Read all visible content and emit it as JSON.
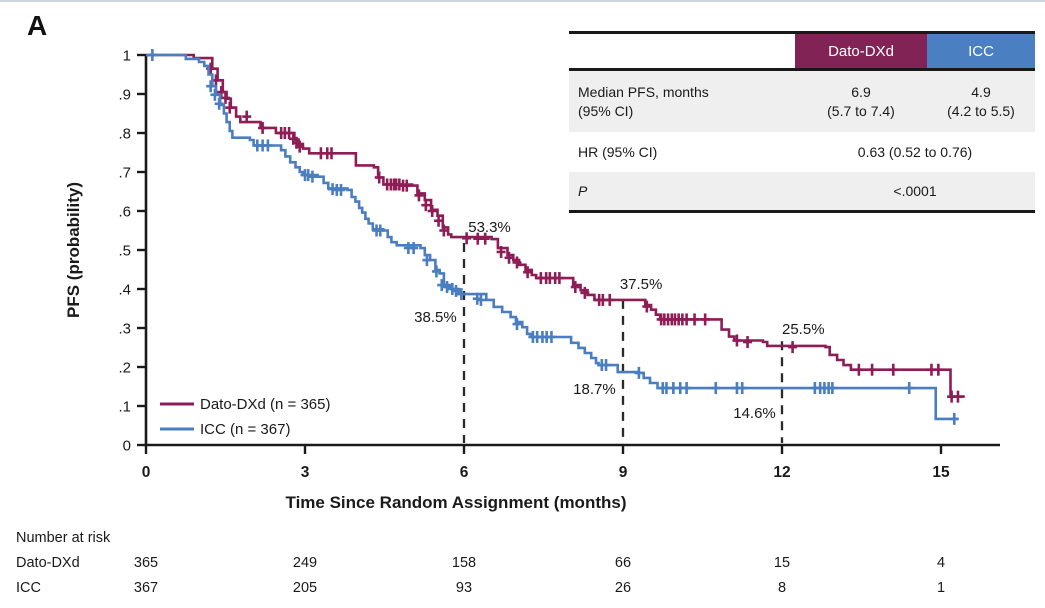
{
  "panel_label": "A",
  "summary_table": {
    "columns": [
      "Dato-DXd",
      "ICC"
    ],
    "rows": [
      {
        "label_line1": "Median PFS, months",
        "label_line2": "(95% CI)",
        "dato_line1": "6.9",
        "dato_line2": "(5.7 to 7.4)",
        "icc_line1": "4.9",
        "icc_line2": "(4.2 to 5.5)"
      },
      {
        "label": "HR (95% CI)",
        "value": "0.63 (0.52 to 0.76)"
      },
      {
        "label": "P",
        "value": "<.0001"
      }
    ],
    "colors": {
      "dato_header": "#822355",
      "icc_header": "#4A80C2",
      "row_gray": "#efefef"
    }
  },
  "chart_data": {
    "type": "line",
    "subtype": "kaplan-meier-step",
    "title": "",
    "xlabel": "Time Since Random Assignment (months)",
    "ylabel": "PFS (probability)",
    "xlim": [
      0,
      16.1
    ],
    "ylim": [
      0,
      1
    ],
    "xticks": [
      0,
      3,
      6,
      9,
      12,
      15
    ],
    "yticks": [
      [
        0,
        "0"
      ],
      [
        0.1,
        ".1"
      ],
      [
        0.2,
        ".2"
      ],
      [
        0.3,
        ".3"
      ],
      [
        0.4,
        ".4"
      ],
      [
        0.5,
        ".5"
      ],
      [
        0.6,
        ".6"
      ],
      [
        0.7,
        ".7"
      ],
      [
        0.8,
        ".8"
      ],
      [
        0.9,
        ".9"
      ],
      [
        1,
        "1"
      ]
    ],
    "grid": false,
    "legend_position": "lower-left",
    "series": [
      {
        "name": "Dato-DXd (n = 365)",
        "color": "#8E1D56",
        "steps": [
          [
            0,
            1
          ],
          [
            0.85,
            1
          ],
          [
            0.9,
            0.992
          ],
          [
            1.15,
            0.992
          ],
          [
            1.25,
            0.965
          ],
          [
            1.35,
            0.935
          ],
          [
            1.45,
            0.905
          ],
          [
            1.52,
            0.888
          ],
          [
            1.6,
            0.865
          ],
          [
            1.7,
            0.842
          ],
          [
            1.78,
            0.828
          ],
          [
            2.1,
            0.828
          ],
          [
            2.16,
            0.813
          ],
          [
            2.35,
            0.813
          ],
          [
            2.45,
            0.8
          ],
          [
            2.72,
            0.8
          ],
          [
            2.8,
            0.783
          ],
          [
            2.88,
            0.772
          ],
          [
            2.96,
            0.76
          ],
          [
            3.08,
            0.748
          ],
          [
            3.88,
            0.748
          ],
          [
            3.96,
            0.717
          ],
          [
            4.3,
            0.712
          ],
          [
            4.38,
            0.686
          ],
          [
            4.48,
            0.668
          ],
          [
            5.02,
            0.665
          ],
          [
            5.12,
            0.645
          ],
          [
            5.26,
            0.628
          ],
          [
            5.38,
            0.603
          ],
          [
            5.5,
            0.588
          ],
          [
            5.6,
            0.558
          ],
          [
            5.7,
            0.54
          ],
          [
            5.76,
            0.533
          ],
          [
            6.52,
            0.528
          ],
          [
            6.64,
            0.505
          ],
          [
            6.82,
            0.487
          ],
          [
            6.93,
            0.474
          ],
          [
            7.04,
            0.462
          ],
          [
            7.16,
            0.449
          ],
          [
            7.28,
            0.436
          ],
          [
            7.36,
            0.428
          ],
          [
            7.92,
            0.428
          ],
          [
            8.06,
            0.41
          ],
          [
            8.2,
            0.397
          ],
          [
            8.33,
            0.385
          ],
          [
            8.46,
            0.372
          ],
          [
            9.3,
            0.372
          ],
          [
            9.42,
            0.359
          ],
          [
            9.53,
            0.347
          ],
          [
            9.62,
            0.334
          ],
          [
            9.7,
            0.322
          ],
          [
            10.72,
            0.322
          ],
          [
            10.86,
            0.296
          ],
          [
            11.0,
            0.278
          ],
          [
            11.1,
            0.268
          ],
          [
            11.64,
            0.264
          ],
          [
            11.72,
            0.254
          ],
          [
            12.82,
            0.251
          ],
          [
            12.9,
            0.231
          ],
          [
            13.04,
            0.218
          ],
          [
            13.16,
            0.205
          ],
          [
            13.3,
            0.193
          ],
          [
            15.13,
            0.193
          ],
          [
            15.18,
            0.124
          ],
          [
            15.45,
            0.124
          ]
        ],
        "censors": [
          [
            1.22,
            0.965
          ],
          [
            1.32,
            0.935
          ],
          [
            1.42,
            0.905
          ],
          [
            1.5,
            0.89
          ],
          [
            1.58,
            0.865
          ],
          [
            1.9,
            0.842
          ],
          [
            2.2,
            0.813
          ],
          [
            2.55,
            0.8
          ],
          [
            2.62,
            0.8
          ],
          [
            2.7,
            0.8
          ],
          [
            2.78,
            0.785
          ],
          [
            2.84,
            0.775
          ],
          [
            2.9,
            0.765
          ],
          [
            3.3,
            0.748
          ],
          [
            3.42,
            0.748
          ],
          [
            3.5,
            0.748
          ],
          [
            4.4,
            0.686
          ],
          [
            4.55,
            0.668
          ],
          [
            4.62,
            0.668
          ],
          [
            4.68,
            0.668
          ],
          [
            4.72,
            0.668
          ],
          [
            4.78,
            0.668
          ],
          [
            4.85,
            0.665
          ],
          [
            4.92,
            0.665
          ],
          [
            5.15,
            0.64
          ],
          [
            5.28,
            0.615
          ],
          [
            5.4,
            0.6
          ],
          [
            5.52,
            0.575
          ],
          [
            5.62,
            0.55
          ],
          [
            6.05,
            0.53
          ],
          [
            6.26,
            0.529
          ],
          [
            6.4,
            0.529
          ],
          [
            6.7,
            0.495
          ],
          [
            6.85,
            0.48
          ],
          [
            7.0,
            0.468
          ],
          [
            7.2,
            0.443
          ],
          [
            7.45,
            0.428
          ],
          [
            7.55,
            0.428
          ],
          [
            7.62,
            0.428
          ],
          [
            7.72,
            0.428
          ],
          [
            7.8,
            0.428
          ],
          [
            8.1,
            0.405
          ],
          [
            8.28,
            0.39
          ],
          [
            8.55,
            0.372
          ],
          [
            8.62,
            0.372
          ],
          [
            8.75,
            0.372
          ],
          [
            9.45,
            0.355
          ],
          [
            9.72,
            0.322
          ],
          [
            9.78,
            0.322
          ],
          [
            9.85,
            0.322
          ],
          [
            9.92,
            0.322
          ],
          [
            9.98,
            0.322
          ],
          [
            10.05,
            0.322
          ],
          [
            10.12,
            0.322
          ],
          [
            10.2,
            0.322
          ],
          [
            10.35,
            0.322
          ],
          [
            10.55,
            0.322
          ],
          [
            11.15,
            0.268
          ],
          [
            11.35,
            0.264
          ],
          [
            12.2,
            0.251
          ],
          [
            13.45,
            0.193
          ],
          [
            13.7,
            0.193
          ],
          [
            14.1,
            0.193
          ],
          [
            14.82,
            0.193
          ],
          [
            14.95,
            0.193
          ],
          [
            15.2,
            0.124
          ],
          [
            15.32,
            0.124
          ]
        ]
      },
      {
        "name": "ICC (n = 367)",
        "color": "#4A7EC0",
        "steps": [
          [
            0,
            1
          ],
          [
            0.65,
            1
          ],
          [
            0.75,
            0.99
          ],
          [
            1.0,
            0.982
          ],
          [
            1.1,
            0.972
          ],
          [
            1.18,
            0.95
          ],
          [
            1.25,
            0.92
          ],
          [
            1.32,
            0.898
          ],
          [
            1.4,
            0.872
          ],
          [
            1.47,
            0.85
          ],
          [
            1.52,
            0.828
          ],
          [
            1.58,
            0.805
          ],
          [
            1.63,
            0.788
          ],
          [
            1.96,
            0.782
          ],
          [
            2.03,
            0.768
          ],
          [
            2.55,
            0.756
          ],
          [
            2.63,
            0.74
          ],
          [
            2.72,
            0.725
          ],
          [
            2.82,
            0.712
          ],
          [
            2.9,
            0.7
          ],
          [
            2.96,
            0.692
          ],
          [
            3.24,
            0.688
          ],
          [
            3.35,
            0.672
          ],
          [
            3.44,
            0.658
          ],
          [
            3.8,
            0.654
          ],
          [
            3.88,
            0.636
          ],
          [
            3.95,
            0.624
          ],
          [
            4.02,
            0.608
          ],
          [
            4.08,
            0.596
          ],
          [
            4.14,
            0.58
          ],
          [
            4.2,
            0.568
          ],
          [
            4.28,
            0.553
          ],
          [
            4.48,
            0.55
          ],
          [
            4.56,
            0.533
          ],
          [
            4.63,
            0.52
          ],
          [
            4.73,
            0.512
          ],
          [
            5.18,
            0.505
          ],
          [
            5.26,
            0.487
          ],
          [
            5.36,
            0.474
          ],
          [
            5.46,
            0.449
          ],
          [
            5.54,
            0.44
          ],
          [
            5.62,
            0.41
          ],
          [
            5.76,
            0.4
          ],
          [
            5.9,
            0.387
          ],
          [
            6.42,
            0.372
          ],
          [
            6.56,
            0.354
          ],
          [
            6.72,
            0.341
          ],
          [
            6.88,
            0.328
          ],
          [
            6.98,
            0.315
          ],
          [
            7.1,
            0.302
          ],
          [
            7.19,
            0.285
          ],
          [
            7.26,
            0.277
          ],
          [
            7.88,
            0.277
          ],
          [
            8.02,
            0.262
          ],
          [
            8.16,
            0.249
          ],
          [
            8.28,
            0.236
          ],
          [
            8.4,
            0.223
          ],
          [
            8.49,
            0.21
          ],
          [
            8.54,
            0.205
          ],
          [
            8.82,
            0.205
          ],
          [
            8.9,
            0.187
          ],
          [
            9.27,
            0.185
          ],
          [
            9.39,
            0.172
          ],
          [
            9.51,
            0.159
          ],
          [
            9.65,
            0.146
          ],
          [
            14.84,
            0.146
          ],
          [
            14.9,
            0.067
          ],
          [
            15.32,
            0.067
          ]
        ],
        "censors": [
          [
            0.12,
            1
          ],
          [
            1.22,
            0.92
          ],
          [
            1.3,
            0.898
          ],
          [
            1.38,
            0.875
          ],
          [
            2.1,
            0.768
          ],
          [
            2.2,
            0.768
          ],
          [
            2.3,
            0.768
          ],
          [
            3.0,
            0.692
          ],
          [
            3.06,
            0.692
          ],
          [
            3.14,
            0.688
          ],
          [
            3.52,
            0.656
          ],
          [
            3.6,
            0.654
          ],
          [
            3.68,
            0.654
          ],
          [
            4.35,
            0.55
          ],
          [
            4.42,
            0.55
          ],
          [
            4.95,
            0.505
          ],
          [
            5.05,
            0.505
          ],
          [
            5.3,
            0.474
          ],
          [
            5.48,
            0.445
          ],
          [
            5.58,
            0.41
          ],
          [
            5.68,
            0.405
          ],
          [
            5.78,
            0.4
          ],
          [
            5.85,
            0.395
          ],
          [
            5.95,
            0.387
          ],
          [
            6.25,
            0.375
          ],
          [
            6.32,
            0.372
          ],
          [
            7.0,
            0.31
          ],
          [
            7.3,
            0.277
          ],
          [
            7.38,
            0.277
          ],
          [
            7.48,
            0.277
          ],
          [
            7.56,
            0.277
          ],
          [
            7.65,
            0.277
          ],
          [
            8.6,
            0.205
          ],
          [
            8.68,
            0.205
          ],
          [
            9.3,
            0.185
          ],
          [
            9.75,
            0.146
          ],
          [
            9.82,
            0.146
          ],
          [
            9.95,
            0.146
          ],
          [
            10.08,
            0.146
          ],
          [
            10.2,
            0.146
          ],
          [
            10.75,
            0.146
          ],
          [
            11.15,
            0.146
          ],
          [
            11.25,
            0.146
          ],
          [
            12.62,
            0.146
          ],
          [
            12.72,
            0.146
          ],
          [
            12.8,
            0.146
          ],
          [
            12.88,
            0.146
          ],
          [
            12.95,
            0.146
          ],
          [
            14.4,
            0.146
          ],
          [
            15.25,
            0.067
          ]
        ]
      }
    ],
    "dashed_lines": [
      {
        "x": 6,
        "y_top": 0.518
      },
      {
        "x": 9,
        "y_top": 0.372
      },
      {
        "x": 12,
        "y_top": 0.266
      }
    ],
    "annotations": [
      {
        "text": "53.3%",
        "x": 6.08,
        "y": 0.546,
        "series": "Dato-DXd"
      },
      {
        "text": "37.5%",
        "x": 8.94,
        "y": 0.4,
        "series": "Dato-DXd"
      },
      {
        "text": "25.5%",
        "x": 12.0,
        "y": 0.285,
        "series": "Dato-DXd"
      },
      {
        "text": "38.5%",
        "x": 5.06,
        "y": 0.315,
        "series": "ICC"
      },
      {
        "text": "18.7%",
        "x": 8.06,
        "y": 0.131,
        "series": "ICC"
      },
      {
        "text": "14.6%",
        "x": 11.08,
        "y": 0.069,
        "series": "ICC"
      }
    ],
    "risk_table": {
      "title": "Number at risk",
      "time_points": [
        0,
        3,
        6,
        9,
        12,
        15
      ],
      "rows": [
        {
          "label": "Dato-DXd",
          "values": [
            "365",
            "249",
            "158",
            "66",
            "15",
            "4"
          ]
        },
        {
          "label": "ICC",
          "values": [
            "367",
            "205",
            "93",
            "26",
            "8",
            "1"
          ]
        }
      ]
    }
  }
}
